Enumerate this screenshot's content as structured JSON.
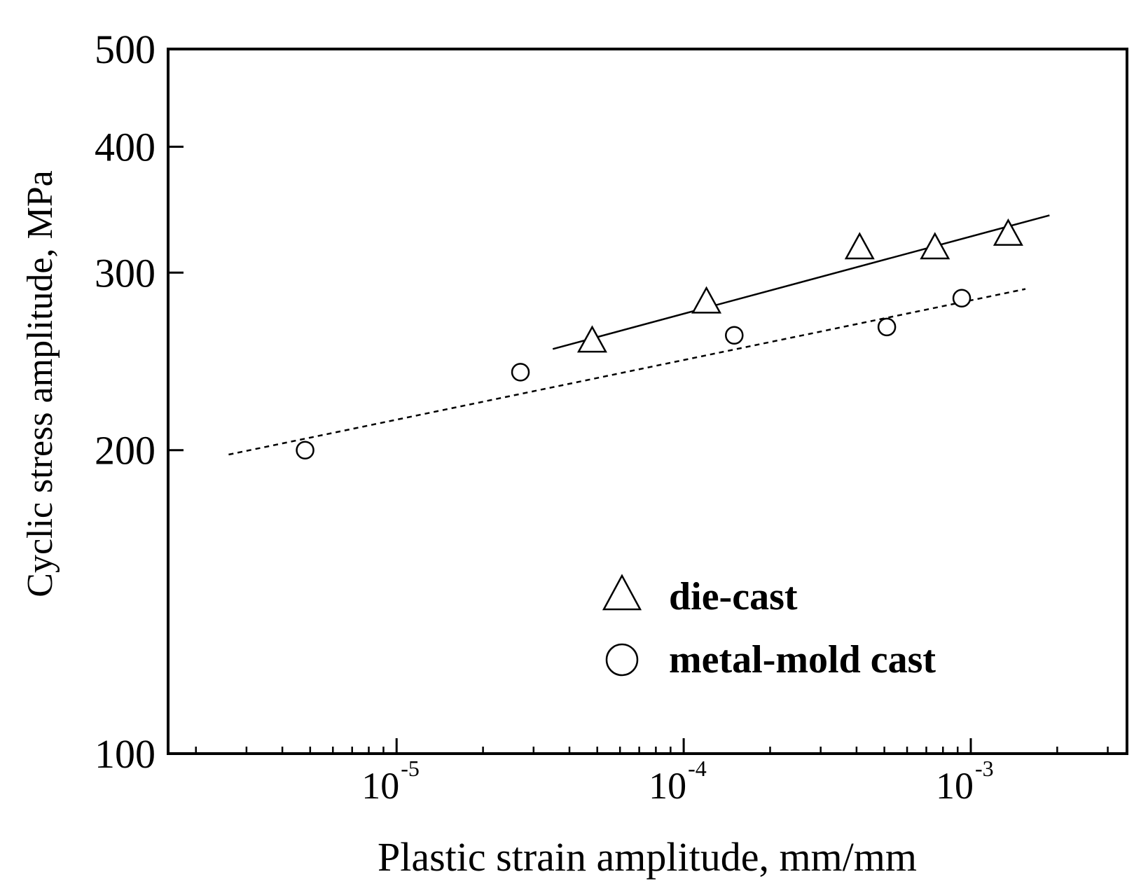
{
  "chart_data": {
    "type": "scatter",
    "xlabel": "Plastic strain amplitude, mm/mm",
    "ylabel": "Cyclic stress amplitude, MPa",
    "xscale": "log",
    "yscale": "log",
    "xlim": [
      1.6e-06,
      0.0035
    ],
    "ylim": [
      100,
      500
    ],
    "y_ticks": [
      {
        "value": 100,
        "label": "100"
      },
      {
        "value": 200,
        "label": "200"
      },
      {
        "value": 300,
        "label": "300"
      },
      {
        "value": 400,
        "label": "400"
      },
      {
        "value": 500,
        "label": "500"
      }
    ],
    "x_ticks": [
      {
        "value": 1e-05,
        "base": "10",
        "exp": "-5"
      },
      {
        "value": 0.0001,
        "base": "10",
        "exp": "-4"
      },
      {
        "value": 0.001,
        "base": "10",
        "exp": "-3"
      }
    ],
    "legend_position": "bottom-right",
    "series": [
      {
        "name": "die-cast",
        "marker": "triangle",
        "points": [
          {
            "x": 4.8e-05,
            "y": 257
          },
          {
            "x": 0.00012,
            "y": 281
          },
          {
            "x": 0.00041,
            "y": 318
          },
          {
            "x": 0.00075,
            "y": 318
          },
          {
            "x": 0.00135,
            "y": 328
          }
        ],
        "fit": {
          "style": "solid",
          "from": {
            "x": 3.5e-05,
            "y": 252
          },
          "to": {
            "x": 0.00188,
            "y": 342
          }
        }
      },
      {
        "name": "metal-mold cast",
        "marker": "circle",
        "points": [
          {
            "x": 4.8e-06,
            "y": 200
          },
          {
            "x": 2.7e-05,
            "y": 239
          },
          {
            "x": 0.00015,
            "y": 260
          },
          {
            "x": 0.00051,
            "y": 265
          },
          {
            "x": 0.00093,
            "y": 283
          }
        ],
        "fit": {
          "style": "dotted",
          "from": {
            "x": 2.6e-06,
            "y": 198
          },
          "to": {
            "x": 0.00155,
            "y": 289
          }
        }
      }
    ]
  }
}
